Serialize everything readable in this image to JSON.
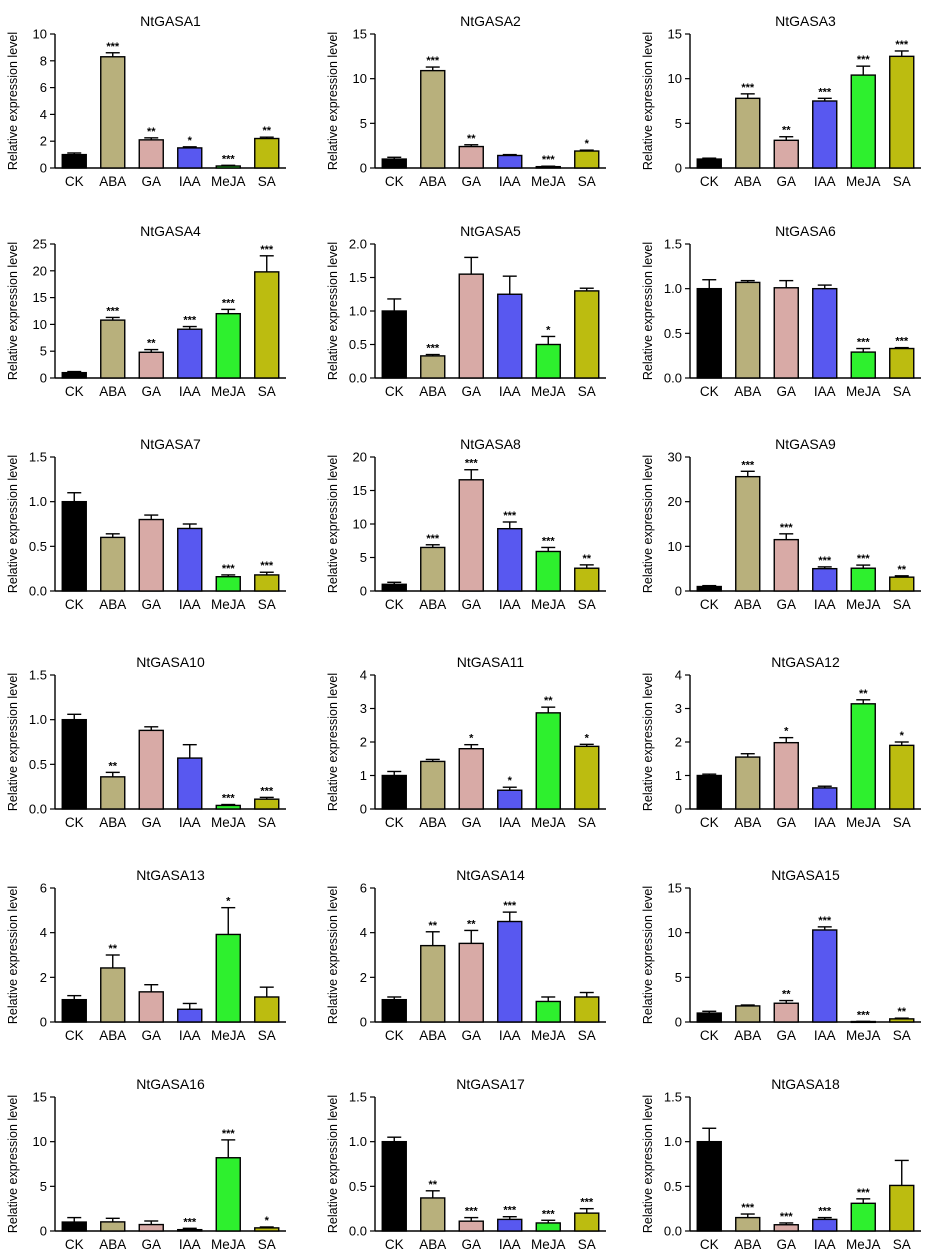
{
  "ylabel": "Relative expression level",
  "categories": [
    "CK",
    "ABA",
    "GA",
    "IAA",
    "MeJA",
    "SA"
  ],
  "colors": {
    "CK": "#000000",
    "ABA": "#b8b07c",
    "GA": "#d8aaa6",
    "IAA": "#5858f0",
    "MeJA": "#2ef02e",
    "SA": "#bcbc10",
    "edge": "#000000"
  },
  "chart_data": [
    {
      "type": "bar",
      "title": "NtGASA1",
      "ylabel": "Relative expression level",
      "categories": [
        "CK",
        "ABA",
        "GA",
        "IAA",
        "MeJA",
        "SA"
      ],
      "ylim": [
        0,
        10
      ],
      "yticks": [
        0,
        2,
        4,
        6,
        8,
        10
      ],
      "values": [
        1.0,
        8.3,
        2.1,
        1.5,
        0.15,
        2.2
      ],
      "errors": [
        0.12,
        0.3,
        0.15,
        0.08,
        0.05,
        0.1
      ],
      "sig": [
        "",
        "***",
        "**",
        "*",
        "***",
        "**"
      ]
    },
    {
      "type": "bar",
      "title": "NtGASA2",
      "ylabel": "Relative expression level",
      "categories": [
        "CK",
        "ABA",
        "GA",
        "IAA",
        "MeJA",
        "SA"
      ],
      "ylim": [
        0,
        15
      ],
      "yticks": [
        0,
        5,
        10,
        15
      ],
      "values": [
        1.0,
        10.9,
        2.4,
        1.4,
        0.15,
        1.9
      ],
      "errors": [
        0.2,
        0.4,
        0.2,
        0.1,
        0.05,
        0.1
      ],
      "sig": [
        "",
        "***",
        "**",
        "",
        "***",
        "*"
      ]
    },
    {
      "type": "bar",
      "title": "NtGASA3",
      "ylabel": "Relative expression level",
      "categories": [
        "CK",
        "ABA",
        "GA",
        "IAA",
        "MeJA",
        "SA"
      ],
      "ylim": [
        0,
        15
      ],
      "yticks": [
        0,
        5,
        10,
        15
      ],
      "values": [
        1.0,
        7.8,
        3.1,
        7.5,
        10.4,
        12.5
      ],
      "errors": [
        0.1,
        0.5,
        0.4,
        0.3,
        1.0,
        0.6
      ],
      "sig": [
        "",
        "***",
        "**",
        "***",
        "***",
        "***"
      ]
    },
    {
      "type": "bar",
      "title": "NtGASA4",
      "ylabel": "Relative expression level",
      "categories": [
        "CK",
        "ABA",
        "GA",
        "IAA",
        "MeJA",
        "SA"
      ],
      "ylim": [
        0,
        25
      ],
      "yticks": [
        0,
        5,
        10,
        15,
        20,
        25
      ],
      "values": [
        1.0,
        10.8,
        4.8,
        9.1,
        12.0,
        19.8
      ],
      "errors": [
        0.2,
        0.5,
        0.5,
        0.5,
        0.8,
        3.0
      ],
      "sig": [
        "",
        "***",
        "**",
        "***",
        "***",
        "***"
      ]
    },
    {
      "type": "bar",
      "title": "NtGASA5",
      "ylabel": "Relative expression level",
      "categories": [
        "CK",
        "ABA",
        "GA",
        "IAA",
        "MeJA",
        "SA"
      ],
      "ylim": [
        0,
        2.0
      ],
      "yticks": [
        0.0,
        0.5,
        1.0,
        1.5,
        2.0
      ],
      "values": [
        1.0,
        0.33,
        1.55,
        1.25,
        0.5,
        1.3
      ],
      "errors": [
        0.18,
        0.02,
        0.25,
        0.27,
        0.12,
        0.04
      ],
      "sig": [
        "",
        "***",
        "",
        "",
        "*",
        ""
      ]
    },
    {
      "type": "bar",
      "title": "NtGASA6",
      "ylabel": "Relative expression level",
      "categories": [
        "CK",
        "ABA",
        "GA",
        "IAA",
        "MeJA",
        "SA"
      ],
      "ylim": [
        0,
        1.5
      ],
      "yticks": [
        0.0,
        0.5,
        1.0,
        1.5
      ],
      "values": [
        1.0,
        1.07,
        1.01,
        1.0,
        0.29,
        0.33
      ],
      "errors": [
        0.1,
        0.02,
        0.08,
        0.04,
        0.04,
        0.01
      ],
      "sig": [
        "",
        "",
        "",
        "",
        "***",
        "***"
      ]
    },
    {
      "type": "bar",
      "title": "NtGASA7",
      "ylabel": "Relative expression level",
      "categories": [
        "CK",
        "ABA",
        "GA",
        "IAA",
        "MeJA",
        "SA"
      ],
      "ylim": [
        0,
        1.5
      ],
      "yticks": [
        0.0,
        0.5,
        1.0,
        1.5
      ],
      "values": [
        1.0,
        0.6,
        0.8,
        0.7,
        0.16,
        0.18
      ],
      "errors": [
        0.1,
        0.04,
        0.05,
        0.05,
        0.02,
        0.03
      ],
      "sig": [
        "",
        "",
        "",
        "",
        "***",
        "***"
      ]
    },
    {
      "type": "bar",
      "title": "NtGASA8",
      "ylabel": "Relative expression level",
      "categories": [
        "CK",
        "ABA",
        "GA",
        "IAA",
        "MeJA",
        "SA"
      ],
      "ylim": [
        0,
        20
      ],
      "yticks": [
        0,
        5,
        10,
        15,
        20
      ],
      "values": [
        1.0,
        6.5,
        16.6,
        9.3,
        5.9,
        3.4
      ],
      "errors": [
        0.3,
        0.4,
        1.5,
        1.0,
        0.6,
        0.5
      ],
      "sig": [
        "",
        "***",
        "***",
        "***",
        "***",
        "**"
      ]
    },
    {
      "type": "bar",
      "title": "NtGASA9",
      "ylabel": "Relative expression level",
      "categories": [
        "CK",
        "ABA",
        "GA",
        "IAA",
        "MeJA",
        "SA"
      ],
      "ylim": [
        0,
        30
      ],
      "yticks": [
        0,
        10,
        20,
        30
      ],
      "values": [
        1.0,
        25.6,
        11.5,
        5.0,
        5.1,
        3.1
      ],
      "errors": [
        0.2,
        1.2,
        1.3,
        0.4,
        0.7,
        0.3
      ],
      "sig": [
        "",
        "***",
        "***",
        "***",
        "***",
        "**"
      ]
    },
    {
      "type": "bar",
      "title": "NtGASA10",
      "ylabel": "Relative expression level",
      "categories": [
        "CK",
        "ABA",
        "GA",
        "IAA",
        "MeJA",
        "SA"
      ],
      "ylim": [
        0,
        1.5
      ],
      "yticks": [
        0.0,
        0.5,
        1.0,
        1.5
      ],
      "values": [
        1.0,
        0.36,
        0.88,
        0.57,
        0.04,
        0.11
      ],
      "errors": [
        0.06,
        0.05,
        0.04,
        0.15,
        0.01,
        0.02
      ],
      "sig": [
        "",
        "**",
        "",
        "",
        "***",
        "***"
      ]
    },
    {
      "type": "bar",
      "title": "NtGASA11",
      "ylabel": "Relative expression level",
      "categories": [
        "CK",
        "ABA",
        "GA",
        "IAA",
        "MeJA",
        "SA"
      ],
      "ylim": [
        0,
        4
      ],
      "yticks": [
        0,
        1,
        2,
        3,
        4
      ],
      "values": [
        1.0,
        1.42,
        1.8,
        0.56,
        2.87,
        1.87
      ],
      "errors": [
        0.12,
        0.06,
        0.12,
        0.09,
        0.17,
        0.06
      ],
      "sig": [
        "",
        "",
        "*",
        "*",
        "**",
        "*"
      ]
    },
    {
      "type": "bar",
      "title": "NtGASA12",
      "ylabel": "Relative expression level",
      "categories": [
        "CK",
        "ABA",
        "GA",
        "IAA",
        "MeJA",
        "SA"
      ],
      "ylim": [
        0,
        4
      ],
      "yticks": [
        0,
        1,
        2,
        3,
        4
      ],
      "values": [
        1.0,
        1.55,
        1.98,
        0.63,
        3.14,
        1.9
      ],
      "errors": [
        0.04,
        0.1,
        0.15,
        0.05,
        0.12,
        0.1
      ],
      "sig": [
        "",
        "",
        "*",
        "",
        "**",
        "*"
      ]
    },
    {
      "type": "bar",
      "title": "NtGASA13",
      "ylabel": "Relative expression level",
      "categories": [
        "CK",
        "ABA",
        "GA",
        "IAA",
        "MeJA",
        "SA"
      ],
      "ylim": [
        0,
        6
      ],
      "yticks": [
        0,
        2,
        4,
        6
      ],
      "values": [
        1.0,
        2.42,
        1.35,
        0.57,
        3.92,
        1.12
      ],
      "errors": [
        0.18,
        0.58,
        0.32,
        0.26,
        1.2,
        0.44
      ],
      "sig": [
        "",
        "**",
        "",
        "",
        "*",
        ""
      ]
    },
    {
      "type": "bar",
      "title": "NtGASA14",
      "ylabel": "Relative expression level",
      "categories": [
        "CK",
        "ABA",
        "GA",
        "IAA",
        "MeJA",
        "SA"
      ],
      "ylim": [
        0,
        6
      ],
      "yticks": [
        0,
        2,
        4,
        6
      ],
      "values": [
        1.0,
        3.42,
        3.52,
        4.5,
        0.92,
        1.12
      ],
      "errors": [
        0.12,
        0.62,
        0.58,
        0.42,
        0.2,
        0.2
      ],
      "sig": [
        "",
        "**",
        "**",
        "***",
        "",
        ""
      ]
    },
    {
      "type": "bar",
      "title": "NtGASA15",
      "ylabel": "Relative expression level",
      "categories": [
        "CK",
        "ABA",
        "GA",
        "IAA",
        "MeJA",
        "SA"
      ],
      "ylim": [
        0,
        15
      ],
      "yticks": [
        0,
        5,
        10,
        15
      ],
      "values": [
        1.0,
        1.8,
        2.1,
        10.3,
        0.05,
        0.35
      ],
      "errors": [
        0.2,
        0.1,
        0.3,
        0.35,
        0.02,
        0.08
      ],
      "sig": [
        "",
        "",
        "**",
        "***",
        "***",
        "**"
      ]
    },
    {
      "type": "bar",
      "title": "NtGASA16",
      "ylabel": "Relative expression level",
      "categories": [
        "CK",
        "ABA",
        "GA",
        "IAA",
        "MeJA",
        "SA"
      ],
      "ylim": [
        0,
        15
      ],
      "yticks": [
        0,
        5,
        10,
        15
      ],
      "values": [
        1.0,
        1.02,
        0.72,
        0.15,
        8.2,
        0.35
      ],
      "errors": [
        0.5,
        0.4,
        0.4,
        0.15,
        2.0,
        0.1
      ],
      "sig": [
        "",
        "",
        "",
        "***",
        "***",
        "*"
      ]
    },
    {
      "type": "bar",
      "title": "NtGASA17",
      "ylabel": "Relative expression level",
      "categories": [
        "CK",
        "ABA",
        "GA",
        "IAA",
        "MeJA",
        "SA"
      ],
      "ylim": [
        0,
        1.5
      ],
      "yticks": [
        0.0,
        0.5,
        1.0,
        1.5
      ],
      "values": [
        1.0,
        0.37,
        0.11,
        0.13,
        0.09,
        0.2
      ],
      "errors": [
        0.05,
        0.08,
        0.04,
        0.03,
        0.03,
        0.05
      ],
      "sig": [
        "",
        "**",
        "***",
        "***",
        "***",
        "***"
      ]
    },
    {
      "type": "bar",
      "title": "NtGASA18",
      "ylabel": "Relative expression level",
      "categories": [
        "CK",
        "ABA",
        "GA",
        "IAA",
        "MeJA",
        "SA"
      ],
      "ylim": [
        0,
        1.5
      ],
      "yticks": [
        0.0,
        0.5,
        1.0,
        1.5
      ],
      "values": [
        1.0,
        0.15,
        0.07,
        0.13,
        0.31,
        0.51
      ],
      "errors": [
        0.15,
        0.04,
        0.02,
        0.02,
        0.05,
        0.28
      ],
      "sig": [
        "",
        "***",
        "***",
        "***",
        "***",
        ""
      ]
    }
  ]
}
